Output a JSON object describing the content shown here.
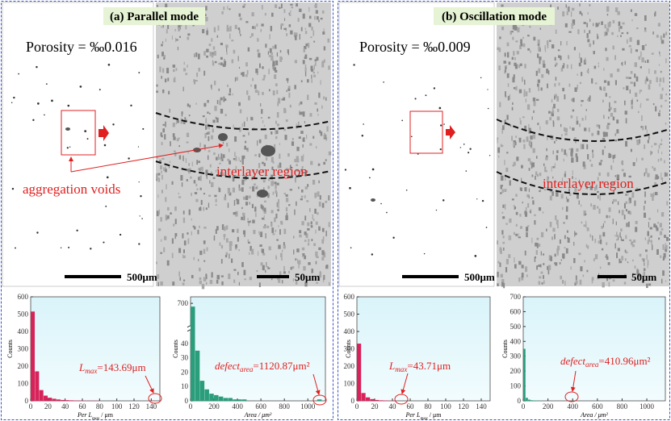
{
  "panels": [
    {
      "title": "(a) Parallel mode",
      "porosity": "Porosity = ‰0.016",
      "scale_low": "500μm",
      "scale_high": "50μm",
      "region": "interlayer region",
      "voids": "aggregation voids"
    },
    {
      "title": "(b) Oscillation mode",
      "porosity": "Porosity = ‰0.009",
      "scale_low": "500μm",
      "scale_high": "50μm",
      "region": "interlayer region"
    }
  ],
  "chart_data": [
    {
      "type": "histogram",
      "ylabel": "Counts",
      "xlabel": {
        "text": "Per L",
        "sub": "max",
        "rest": " / μm"
      },
      "annotation": {
        "text": "L",
        "sub": "max",
        "rest": "=143.69μm"
      },
      "color": "#d6245a",
      "bins": [
        0,
        5,
        10,
        15,
        20,
        25,
        30,
        35,
        40,
        45,
        50,
        55,
        60,
        65,
        70,
        75,
        80,
        85,
        90,
        95,
        100,
        105,
        110,
        115,
        120,
        125,
        130,
        135,
        140,
        145
      ],
      "values": [
        515,
        170,
        62,
        30,
        18,
        12,
        8,
        5,
        4,
        3,
        2,
        2,
        1,
        1,
        1,
        1,
        0,
        0,
        0,
        0,
        0,
        0,
        0,
        0,
        0,
        0,
        0,
        0,
        1
      ],
      "xlim": [
        0,
        150
      ],
      "xticks": [
        0,
        20,
        40,
        60,
        80,
        100,
        120,
        140
      ],
      "ylim": [
        0,
        600
      ],
      "yticks": [
        0,
        100,
        200,
        300,
        400,
        500,
        600
      ]
    },
    {
      "type": "histogram",
      "ylabel": "Counts",
      "xlabel": {
        "text": "Area / μm²"
      },
      "annotation": {
        "text": "defect",
        "sub": "area",
        "rest": "=1120.87μm²"
      },
      "color": "#2a9d7a",
      "bins": [
        0,
        40,
        80,
        120,
        160,
        200,
        240,
        280,
        320,
        360,
        400,
        440,
        480,
        520,
        560,
        600,
        640,
        680,
        720,
        760,
        800,
        840,
        880,
        920,
        960,
        1000,
        1040,
        1080,
        1120
      ],
      "values": [
        690,
        35,
        14,
        8,
        5,
        4,
        3,
        2,
        2,
        1,
        1,
        1,
        0,
        0,
        0,
        0,
        0,
        0,
        0,
        0,
        0,
        0,
        0,
        0,
        0,
        0,
        0,
        1
      ],
      "xlim": [
        0,
        1150
      ],
      "xticks": [
        0,
        200,
        400,
        600,
        800,
        1000
      ],
      "ylim": [
        0,
        720
      ],
      "yticks": [
        0,
        10,
        20,
        30,
        40,
        700
      ],
      "y_break": [
        45,
        650
      ]
    },
    {
      "type": "histogram",
      "ylabel": "Counts",
      "xlabel": {
        "text": "Per L",
        "sub": "max",
        "rest": " / μm"
      },
      "annotation": {
        "text": "L",
        "sub": "max",
        "rest": "=43.71μm"
      },
      "color": "#d6245a",
      "bins": [
        0,
        5,
        10,
        15,
        20,
        25,
        30,
        35,
        40,
        45
      ],
      "values": [
        330,
        45,
        20,
        10,
        5,
        3,
        2,
        1,
        1
      ],
      "xlim": [
        0,
        150
      ],
      "xticks": [
        0,
        20,
        40,
        60,
        80,
        100,
        120,
        140
      ],
      "ylim": [
        0,
        600
      ],
      "yticks": [
        0,
        100,
        200,
        300,
        400,
        500,
        600
      ]
    },
    {
      "type": "histogram",
      "ylabel": "Counts",
      "xlabel": {
        "text": "Area / μm²"
      },
      "annotation": {
        "text": "defect",
        "sub": "area",
        "rest": "=410.96μm²"
      },
      "color": "#2a9d7a",
      "bins": [
        0,
        20,
        40,
        60,
        80,
        100,
        120,
        140,
        160,
        180,
        200,
        220,
        240,
        260,
        280,
        300,
        320,
        340,
        360,
        380,
        400,
        420
      ],
      "values": [
        350,
        20,
        8,
        4,
        3,
        2,
        1,
        1,
        0,
        0,
        0,
        0,
        0,
        0,
        0,
        0,
        0,
        0,
        0,
        0,
        1
      ],
      "xlim": [
        0,
        1150
      ],
      "xticks": [
        0,
        200,
        400,
        600,
        800,
        1000
      ],
      "ylim": [
        0,
        700
      ],
      "yticks": [
        0,
        100,
        200,
        300,
        400,
        500,
        600,
        700
      ]
    }
  ]
}
